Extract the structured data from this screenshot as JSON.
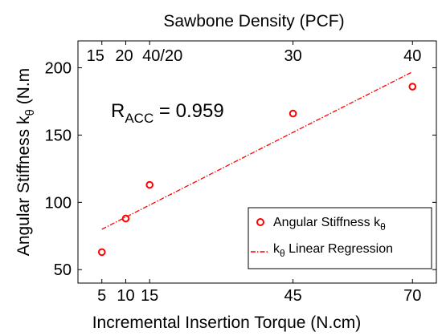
{
  "chart_data": {
    "type": "scatter",
    "title": "Sawbone Density (PCF)",
    "xlabel": "Incremental Insertion Torque (N.cm)",
    "ylabel": {
      "text": "Angular Stiffness k",
      "sub": "θ",
      "tail": " (N.m"
    },
    "xlim": [
      0,
      75
    ],
    "ylim": [
      40,
      220
    ],
    "x_ticks": [
      {
        "value": 5,
        "label": "5"
      },
      {
        "value": 10,
        "label": "10"
      },
      {
        "value": 15,
        "label": "15"
      },
      {
        "value": 45,
        "label": "45"
      },
      {
        "value": 70,
        "label": "70"
      }
    ],
    "y_ticks": [
      {
        "value": 50,
        "label": "50"
      },
      {
        "value": 100,
        "label": "100"
      },
      {
        "value": 150,
        "label": "150"
      },
      {
        "value": 200,
        "label": "200"
      }
    ],
    "top_ticks": [
      {
        "value": 5,
        "label": "15"
      },
      {
        "value": 10,
        "label": "20"
      },
      {
        "value": 15,
        "label": "40/20"
      },
      {
        "value": 45,
        "label": "30"
      },
      {
        "value": 70,
        "label": "40"
      }
    ],
    "series": [
      {
        "name": "Angular Stiffness k",
        "name_sub": "θ",
        "marker": "circle",
        "color": "#ff0000",
        "points": [
          {
            "x": 5,
            "y": 63
          },
          {
            "x": 10,
            "y": 88
          },
          {
            "x": 15,
            "y": 113
          },
          {
            "x": 45,
            "y": 166
          },
          {
            "x": 70,
            "y": 186
          }
        ]
      }
    ],
    "regression": {
      "name": " Linear Regression",
      "name_prefix": "k",
      "name_sub": "θ",
      "color": "#ff0000",
      "style": "dash-dot",
      "x": [
        5,
        70
      ],
      "y": [
        80,
        197
      ]
    },
    "annotation": {
      "prefix": "R",
      "sub": "ACC",
      "rest": " = 0.959"
    },
    "legend_position": "bottom-right",
    "grid": false
  }
}
